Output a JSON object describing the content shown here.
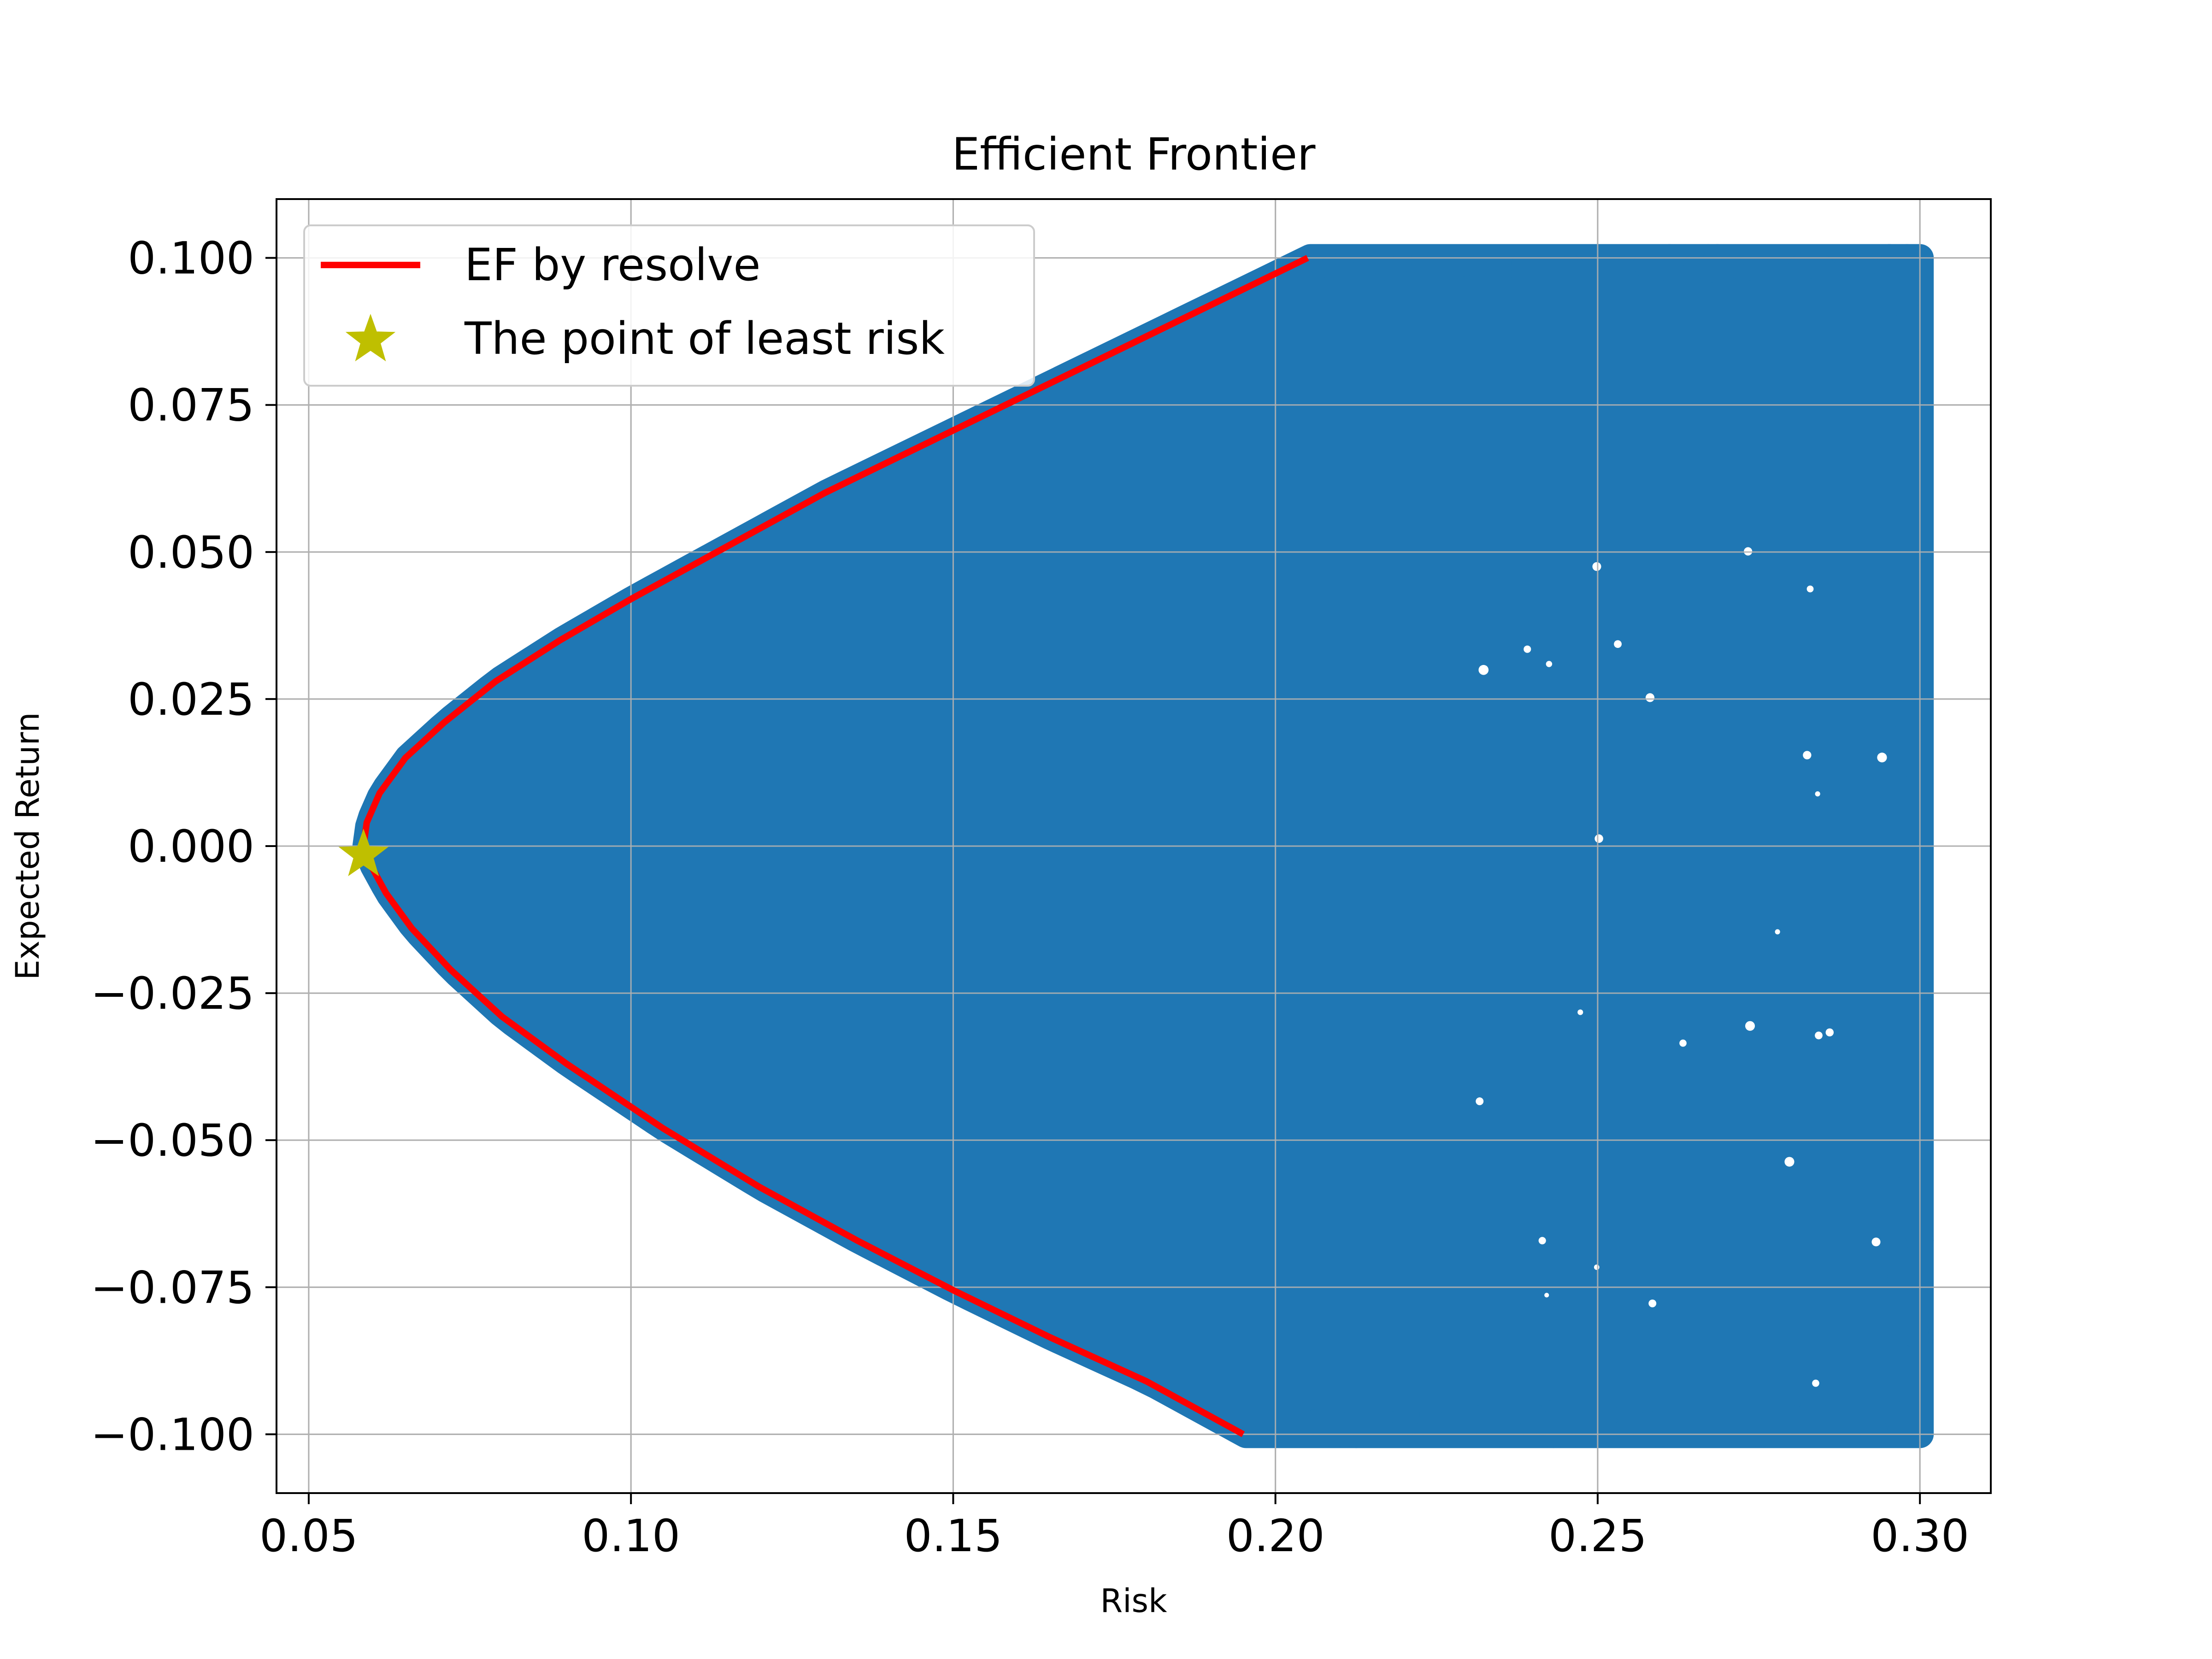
{
  "chart_data": {
    "type": "scatter",
    "title": "Efficient Frontier",
    "xlabel": "Risk",
    "ylabel": "Expected Return",
    "xlim": [
      0.045,
      0.311
    ],
    "ylim": [
      -0.11,
      0.11
    ],
    "xticks": [
      {
        "value": 0.05,
        "label": "0.05"
      },
      {
        "value": 0.1,
        "label": "0.10"
      },
      {
        "value": 0.15,
        "label": "0.15"
      },
      {
        "value": 0.2,
        "label": "0.20"
      },
      {
        "value": 0.25,
        "label": "0.25"
      },
      {
        "value": 0.3,
        "label": "0.30"
      }
    ],
    "yticks": [
      {
        "value": 0.1,
        "label": "0.100"
      },
      {
        "value": 0.075,
        "label": "0.075"
      },
      {
        "value": 0.05,
        "label": "0.050"
      },
      {
        "value": 0.025,
        "label": "0.025"
      },
      {
        "value": 0.0,
        "label": "0.000"
      },
      {
        "value": -0.025,
        "label": "−0.025"
      },
      {
        "value": -0.05,
        "label": "−0.050"
      },
      {
        "value": -0.075,
        "label": "−0.075"
      },
      {
        "value": -0.1,
        "label": "−0.100"
      }
    ],
    "grid": true,
    "legend_position": "upper-left",
    "series": [
      {
        "name": "",
        "kind": "scatter-region",
        "color": "#1f77b4",
        "description_values": {
          "risk_max": 0.3,
          "return_min": -0.1,
          "return_max": 0.1
        }
      },
      {
        "name": "EF by resolve",
        "kind": "line",
        "color": "#ff0000",
        "x": [
          0.195,
          0.18,
          0.165,
          0.15,
          0.135,
          0.12,
          0.105,
          0.09,
          0.08,
          0.072,
          0.066,
          0.062,
          0.0595,
          0.0585,
          0.059,
          0.061,
          0.065,
          0.071,
          0.079,
          0.089,
          0.1,
          0.115,
          0.13,
          0.145,
          0.16,
          0.175,
          0.19,
          0.205
        ],
        "y": [
          -0.1,
          -0.091,
          -0.0835,
          -0.0755,
          -0.067,
          -0.058,
          -0.048,
          -0.037,
          -0.029,
          -0.021,
          -0.014,
          -0.008,
          -0.003,
          0.0,
          0.004,
          0.009,
          0.015,
          0.021,
          0.028,
          0.035,
          0.042,
          0.051,
          0.06,
          0.068,
          0.076,
          0.084,
          0.092,
          0.1
        ]
      },
      {
        "name": "The point of least risk",
        "kind": "marker",
        "color": "#bfbf00",
        "x": [
          0.0585
        ],
        "y": [
          -0.0015
        ]
      }
    ]
  }
}
